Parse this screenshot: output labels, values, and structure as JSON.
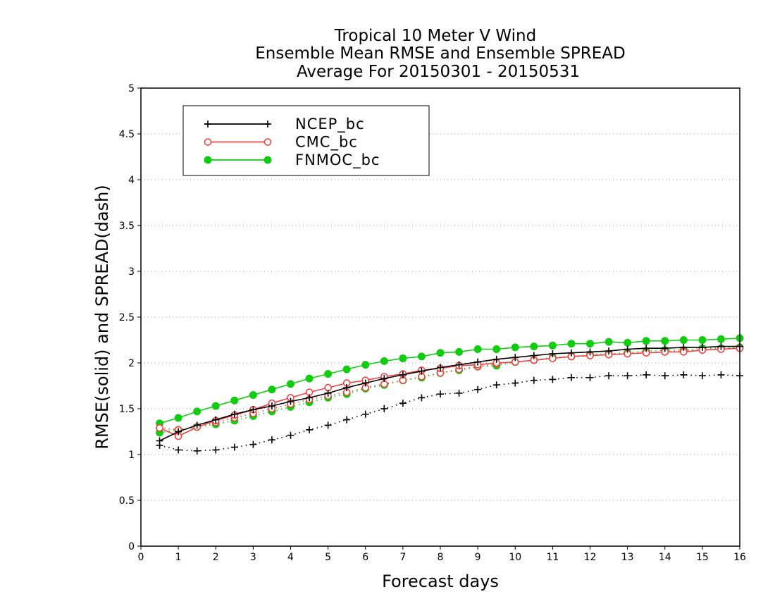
{
  "chart_data": {
    "type": "line",
    "title": [
      "Tropical 10 Meter V Wind",
      "Ensemble Mean RMSE and Ensemble SPREAD",
      "Average For 20150301 - 20150531"
    ],
    "xlabel": "Forecast days",
    "ylabel": "RMSE(solid) and SPREAD(dash)",
    "xlim": [
      0,
      16
    ],
    "ylim": [
      0,
      5
    ],
    "x_ticks": [
      "0",
      "1",
      "2",
      "3",
      "4",
      "5",
      "6",
      "7",
      "8",
      "9",
      "10",
      "11",
      "12",
      "13",
      "14",
      "15",
      "16"
    ],
    "y_ticks": [
      "0",
      "0.5",
      "1",
      "1.5",
      "2",
      "2.5",
      "3",
      "3.5",
      "4",
      "4.5",
      "5"
    ],
    "grid": "horizontal dotted",
    "legend_position": "top-left",
    "x": [
      0.5,
      1,
      1.5,
      2,
      2.5,
      3,
      3.5,
      4,
      4.5,
      5,
      5.5,
      6,
      6.5,
      7,
      7.5,
      8,
      8.5,
      9,
      9.5,
      10,
      10.5,
      11,
      11.5,
      12,
      12.5,
      13,
      13.5,
      14,
      14.5,
      15,
      15.5,
      16
    ],
    "series": [
      {
        "name": "NCEP_bc",
        "color": "#000000",
        "marker": "plus",
        "rmse": [
          1.15,
          1.25,
          1.32,
          1.38,
          1.44,
          1.49,
          1.53,
          1.58,
          1.62,
          1.67,
          1.73,
          1.78,
          1.83,
          1.87,
          1.91,
          1.95,
          1.98,
          2.01,
          2.04,
          2.06,
          2.08,
          2.1,
          2.11,
          2.12,
          2.13,
          2.15,
          2.16,
          2.16,
          2.17,
          2.17,
          2.18,
          2.18
        ],
        "spread": [
          1.1,
          1.05,
          1.04,
          1.05,
          1.08,
          1.11,
          1.16,
          1.21,
          1.27,
          1.32,
          1.38,
          1.44,
          1.5,
          1.56,
          1.62,
          1.66,
          1.67,
          1.71,
          1.76,
          1.78,
          1.81,
          1.82,
          1.84,
          1.84,
          1.86,
          1.86,
          1.87,
          1.86,
          1.87,
          1.86,
          1.87,
          1.86
        ]
      },
      {
        "name": "CMC_bc",
        "color": "#ee4444",
        "marker": "open-circle",
        "rmse": [
          1.29,
          1.2,
          1.3,
          1.37,
          1.43,
          1.49,
          1.56,
          1.62,
          1.68,
          1.73,
          1.78,
          1.81,
          1.85,
          1.88,
          1.92,
          1.94,
          1.97,
          1.98,
          2.0,
          2.01,
          2.03,
          2.05,
          2.07,
          2.08,
          2.09,
          2.1,
          2.11,
          2.12,
          2.12,
          2.14,
          2.15,
          2.16
        ],
        "spread": [
          1.29,
          1.27,
          1.3,
          1.35,
          1.4,
          1.45,
          1.5,
          1.55,
          1.6,
          1.64,
          1.68,
          1.73,
          1.77,
          1.81,
          1.85,
          1.89,
          1.93,
          1.96,
          1.99,
          2.01,
          2.03,
          2.05,
          2.07,
          2.08,
          2.09,
          2.1,
          2.11,
          2.12,
          2.13,
          2.14,
          2.15,
          2.16
        ]
      },
      {
        "name": "FNMOC_bc",
        "color": "#11cc11",
        "marker": "filled-circle",
        "rmse": [
          1.34,
          1.4,
          1.47,
          1.53,
          1.59,
          1.65,
          1.71,
          1.77,
          1.83,
          1.88,
          1.93,
          1.98,
          2.02,
          2.05,
          2.07,
          2.11,
          2.12,
          2.15,
          2.15,
          2.17,
          2.18,
          2.19,
          2.21,
          2.21,
          2.23,
          2.22,
          2.24,
          2.24,
          2.25,
          2.25,
          2.26,
          2.27
        ],
        "spread": [
          1.24,
          1.27,
          1.3,
          1.33,
          1.37,
          1.42,
          1.47,
          1.52,
          1.57,
          1.62,
          1.66,
          1.72,
          1.76,
          1.81,
          1.84,
          1.89,
          1.92,
          1.96,
          1.97,
          2.01,
          2.03,
          2.06,
          2.07,
          2.09,
          2.1,
          2.11,
          2.13,
          2.14,
          2.14,
          2.16,
          2.16,
          2.17
        ]
      }
    ]
  }
}
